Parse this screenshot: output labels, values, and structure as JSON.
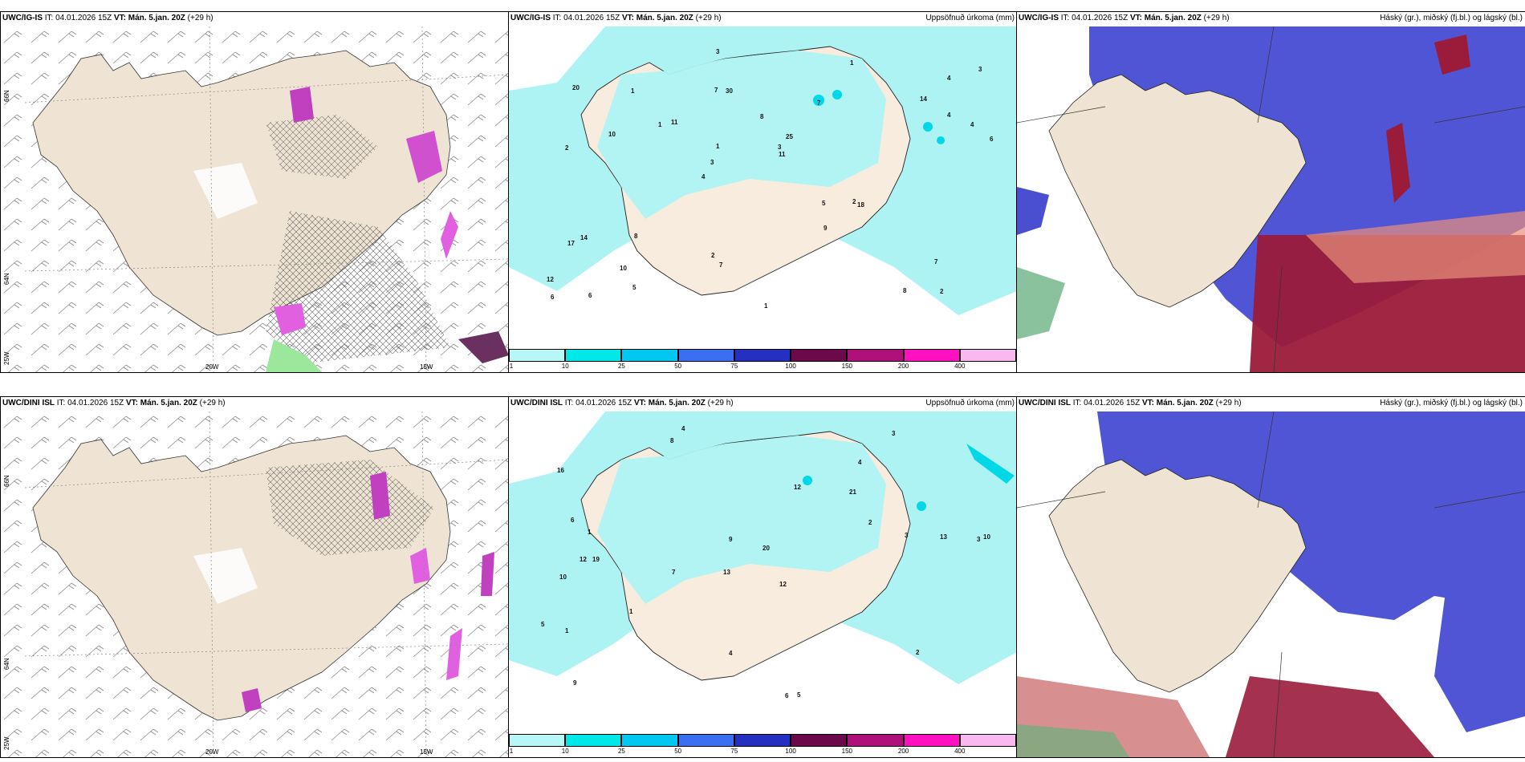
{
  "colors": {
    "land": "#efe4d3",
    "precip_light": "#aef3f3",
    "precip_mid": "#00e5e5",
    "cloud_high": "#4a4ed0",
    "cloud_mid": "#7da0ee",
    "cloud_low": "#9a1b3a",
    "snow_pink": "#e060e0",
    "green": "#9be79b"
  },
  "rows": [
    {
      "wind": {
        "model": "UWC/IG-IS",
        "it": "IT: 04.01.2026 15Z",
        "vt": "VT: Mán. 5.jan. 20Z",
        "lead": "(+29 h)",
        "lat_labels": [
          "66N",
          "64N",
          "25W"
        ],
        "lon_labels": [
          "20W",
          "15W"
        ],
        "lat_right": [
          "65N",
          "64N"
        ]
      },
      "precip": {
        "model": "UWC/IG-IS",
        "it": "IT: 04.01.2026 15Z",
        "vt": "VT: Mán. 5.jan. 20Z",
        "lead": "(+29 h)",
        "subtitle": "Uppsöfnuð úrkoma (mm)"
      },
      "cloud": {
        "model": "UWC/IG-IS",
        "it": "IT: 04.01.2026 15Z",
        "vt": "VT: Mán. 5.jan. 20Z",
        "lead": "(+29 h)",
        "subtitle": "Háský (gr.), miðský (fj.bl.) og lágský (bl.)"
      }
    },
    {
      "wind": {
        "model": "UWC/DINI ISL",
        "it": "IT: 04.01.2026 15Z",
        "vt": "VT: Mán. 5.jan. 20Z",
        "lead": "(+29 h)",
        "lat_labels": [
          "66N",
          "64N",
          "25W"
        ],
        "lon_labels": [
          "20W",
          "15W"
        ],
        "lat_right": [
          "65N",
          "64N"
        ]
      },
      "precip": {
        "model": "UWC/DINI ISL",
        "it": "IT: 04.01.2026 15Z",
        "vt": "VT: Mán. 5.jan. 20Z",
        "lead": "(+29 h)",
        "subtitle": "Uppsöfnuð úrkoma (mm)"
      },
      "cloud": {
        "model": "UWC/DINI ISL",
        "it": "IT: 04.01.2026 15Z",
        "vt": "VT: Mán. 5.jan. 20Z",
        "lead": "(+29 h)",
        "subtitle": "Háský (gr.), miðský (fj.bl.) og lágský (bl.)"
      }
    }
  ],
  "colorbar": {
    "labels": [
      "1",
      "10",
      "25",
      "50",
      "75",
      "100",
      "150",
      "200",
      "400"
    ],
    "colors": [
      "#b8f7f7",
      "#00e8e8",
      "#00c8f0",
      "#3b6ef0",
      "#2430c0",
      "#6a0a4a",
      "#b0107a",
      "#ff10c0",
      "#f8b8f0"
    ]
  },
  "precip_values_top": [
    "2",
    "2",
    "4",
    "4",
    "7",
    "6",
    "7",
    "8",
    "14",
    "11",
    "12",
    "10",
    "30",
    "25",
    "18",
    "20",
    "3",
    "6",
    "5",
    "4",
    "3",
    "2",
    "1",
    "1",
    "1",
    "8",
    "8",
    "7",
    "2",
    "1",
    "1",
    "10",
    "9",
    "5",
    "4",
    "3",
    "6",
    "7",
    "11",
    "17",
    "14",
    "3"
  ],
  "precip_values_bottom": [
    "4",
    "4",
    "3",
    "13",
    "12",
    "19",
    "16",
    "21",
    "10",
    "12",
    "20",
    "9",
    "8",
    "7",
    "6",
    "5",
    "4",
    "3",
    "2",
    "1",
    "1",
    "12",
    "10",
    "13",
    "5",
    "6",
    "9",
    "3",
    "2",
    "1"
  ]
}
